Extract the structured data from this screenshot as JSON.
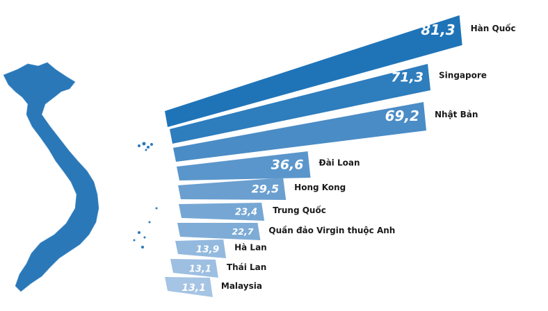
{
  "chart_data": {
    "type": "bar",
    "orientation": "horizontal",
    "categories": [
      "Hàn Quốc",
      "Singapore",
      "Nhật Bản",
      "Đài Loan",
      "Hong Kong",
      "Trung Quốc",
      "Quần đảo Virgin thuộc Anh",
      "Hà Lan",
      "Thái Lan",
      "Malaysia"
    ],
    "values": [
      81.3,
      71.3,
      69.2,
      36.6,
      29.5,
      23.4,
      22.7,
      13.9,
      13.1,
      13.1
    ],
    "value_labels": [
      "81,3",
      "71,3",
      "69,2",
      "36,6",
      "29,5",
      "23,4",
      "22,7",
      "13,9",
      "13,1",
      "13,1"
    ],
    "colors": [
      "#1f74b8",
      "#2e7dbd",
      "#4a8cc6",
      "#5a96cb",
      "#6a9fd0",
      "#76a7d4",
      "#7eacd6",
      "#93b9de",
      "#9dbfe1",
      "#a6c4e3"
    ]
  }
}
